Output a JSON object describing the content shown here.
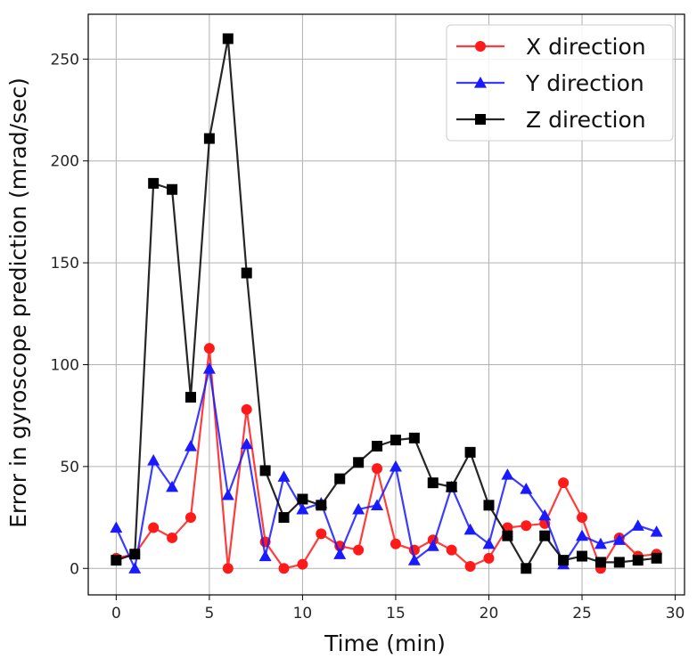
{
  "chart_data": {
    "type": "line",
    "title": "",
    "xlabel": "Time (min)",
    "ylabel": "Error in gyroscope prediction (mrad/sec)",
    "xlim": [
      -1.5,
      30.5
    ],
    "ylim": [
      -13,
      272
    ],
    "xticks": [
      0,
      5,
      10,
      15,
      20,
      25,
      30
    ],
    "yticks": [
      0,
      50,
      100,
      150,
      200,
      250
    ],
    "grid": true,
    "legend_position": "top-right",
    "x": [
      0,
      1,
      2,
      3,
      4,
      5,
      6,
      7,
      8,
      9,
      10,
      11,
      12,
      13,
      14,
      15,
      16,
      17,
      18,
      19,
      20,
      21,
      22,
      23,
      24,
      25,
      26,
      27,
      28,
      29
    ],
    "series": [
      {
        "name": "X direction",
        "color": "#ff1a1a",
        "marker": "circle",
        "values": [
          5,
          7,
          20,
          15,
          25,
          108,
          0,
          78,
          13,
          0,
          2,
          17,
          11,
          9,
          49,
          12,
          9,
          14,
          9,
          1,
          5,
          20,
          21,
          22,
          42,
          25,
          0,
          15,
          6,
          7
        ]
      },
      {
        "name": "Y direction",
        "color": "#1a1aff",
        "marker": "triangle",
        "values": [
          20,
          0,
          53,
          40,
          60,
          98,
          36,
          61,
          6,
          45,
          29,
          32,
          7,
          29,
          31,
          50,
          4,
          11,
          40,
          19,
          12,
          46,
          39,
          26,
          2,
          16,
          12,
          14,
          21,
          18
        ]
      },
      {
        "name": "Z direction",
        "color": "#000000",
        "marker": "square",
        "values": [
          4,
          7,
          189,
          186,
          84,
          211,
          260,
          145,
          48,
          25,
          34,
          31,
          44,
          52,
          60,
          63,
          64,
          42,
          40,
          57,
          31,
          16,
          0,
          16,
          4,
          6,
          3,
          3,
          4,
          5
        ]
      }
    ]
  }
}
